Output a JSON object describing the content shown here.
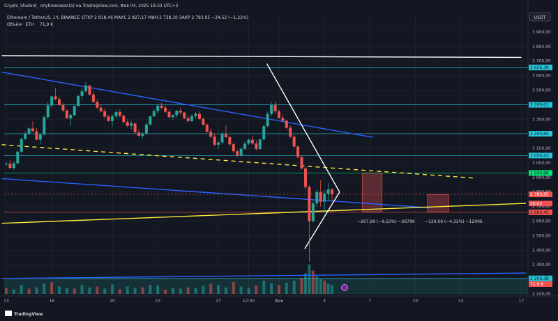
{
  "header": {
    "publisher": "Crypto_Student_ опубликовал(а) на TradingView.com, Фев 04, 2025 18:33 UTC+3",
    "symbol_line": "Ethereum / TetherUS, 1Ч, BINANCE",
    "ohlc": "ОТКР 2 818,46  МАКС 2 827,17  МИН 2 738,10  ЗАКР 2 783,95  −34,52 (−1,22%)",
    "volume_label": "Объём · ETH",
    "volume_value": "71,9 K"
  },
  "currency_button": "USDT",
  "branding": "TradingView",
  "colors": {
    "background": "#131722",
    "up": "#26a69a",
    "down": "#ef5350",
    "cyan_levels": "#26c6da",
    "blue_channel": "#2962ff",
    "yellow_line": "#ffeb3b",
    "white_line": "#ffffff",
    "green_level": "#00e676"
  },
  "chart_data": {
    "type": "candlestick",
    "symbol": "ETHUSDT",
    "interval": "1H",
    "exchange": "BINANCE",
    "y_axis": {
      "range": [
        2100,
        4000
      ],
      "ticks": [
        2100,
        2200,
        2300,
        2400,
        2500,
        2600,
        2700,
        2800,
        2900,
        3000,
        3100,
        3200,
        3300,
        3400,
        3500,
        3600,
        3700,
        3800,
        3900
      ],
      "tick_labels": [
        "2 100,00",
        "2 200,00",
        "2 300,00",
        "2 400,00",
        "2 500,00",
        "2 600,00",
        "2 700,00",
        "2 800,00",
        "2 900,00",
        "3 000,00",
        "3 100,00",
        "3 200,00",
        "3 300,00",
        "3 400,00",
        "3 500,00",
        "3 600,00",
        "3 700,00",
        "3 800,00",
        "3 900,00"
      ]
    },
    "x_axis": {
      "tick_labels": [
        "13",
        "16",
        "20",
        "23",
        "27",
        "12:00",
        "Фев",
        "4",
        "7",
        "10",
        "13",
        "17"
      ],
      "tick_positions": [
        0,
        3,
        7,
        10,
        14,
        16,
        18,
        21,
        24,
        27,
        30,
        34
      ],
      "range": [
        0,
        34.3
      ]
    },
    "horizontal_levels": [
      {
        "value": 3656.39,
        "label": "3 656,39",
        "color": "#26c6da"
      },
      {
        "value": 3399.01,
        "label": "3 399,01",
        "color": "#26c6da"
      },
      {
        "value": 3200.65,
        "label": "3 200,65",
        "color": "#26c6da"
      },
      {
        "value": 3050.43,
        "label": "3 050,43",
        "color": "#26c6da"
      },
      {
        "value": 2930.86,
        "label": "2 930,86",
        "color": "#00e676"
      },
      {
        "value": 2660.45,
        "label": "2 660,45",
        "color": "#ef5350"
      },
      {
        "value": 2206.38,
        "label": "2 206,38",
        "color": "#26c6da"
      }
    ],
    "price_labels": [
      {
        "value": 2783.95,
        "label": "2 783,95",
        "color": "#ef5350"
      },
      {
        "value": 2740,
        "label": "26:02",
        "color": "#ef5350"
      }
    ],
    "volume_scale_label": "71,9 K",
    "trendlines": [
      {
        "from": [
          -0.3,
          3737
        ],
        "to": [
          34,
          3725
        ],
        "color": "#ffffff",
        "style": "solid"
      },
      {
        "from": [
          -0.3,
          3624
        ],
        "to": [
          24.2,
          3176
        ],
        "color": "#2962ff",
        "style": "solid"
      },
      {
        "from": [
          -0.3,
          2892
        ],
        "to": [
          28,
          2692
        ],
        "color": "#2962ff",
        "style": "solid"
      },
      {
        "from": [
          -0.3,
          2206
        ],
        "to": [
          34.3,
          2243
        ],
        "color": "#2962ff",
        "style": "solid"
      },
      {
        "from": [
          -0.3,
          2585
        ],
        "to": [
          34.3,
          2722
        ],
        "color": "#ffeb3b",
        "style": "solid"
      },
      {
        "from": [
          -0.3,
          3125
        ],
        "to": [
          31,
          2895
        ],
        "color": "#ffeb3b",
        "style": "dashed"
      },
      {
        "from": [
          17.2,
          3682
        ],
        "to": [
          22.0,
          2800
        ],
        "color": "#ffffff",
        "style": "solid"
      },
      {
        "from": [
          19.7,
          2410
        ],
        "to": [
          22.0,
          2800
        ],
        "color": "#ffffff",
        "style": "solid"
      }
    ],
    "measure_boxes": [
      {
        "x": [
          23.5,
          24.8
        ],
        "y": [
          2663,
          2931
        ],
        "label": "−267,99 (−9,15%) −26799"
      },
      {
        "x": [
          27.8,
          29.2
        ],
        "y": [
          2663,
          2783
        ],
        "label": "−120,06 (−4,32%) −12006"
      }
    ],
    "candles": [
      [
        0.0,
        2992,
        3008,
        2978,
        2995
      ],
      [
        0.25,
        2995,
        3019,
        2959,
        2965
      ],
      [
        0.5,
        2965,
        3012,
        2953,
        2997
      ],
      [
        0.75,
        2997,
        3087,
        2990,
        3077
      ],
      [
        1.0,
        3077,
        3174,
        3065,
        3164
      ],
      [
        1.25,
        3164,
        3218,
        3158,
        3199
      ],
      [
        1.5,
        3199,
        3246,
        3193,
        3237
      ],
      [
        1.75,
        3237,
        3287,
        3215,
        3218
      ],
      [
        2.0,
        3218,
        3239,
        3157,
        3160
      ],
      [
        2.25,
        3160,
        3200,
        3127,
        3195
      ],
      [
        2.5,
        3195,
        3325,
        3190,
        3314
      ],
      [
        2.75,
        3314,
        3418,
        3305,
        3395
      ],
      [
        3.0,
        3395,
        3464,
        3380,
        3457
      ],
      [
        3.25,
        3457,
        3515,
        3430,
        3438
      ],
      [
        3.5,
        3438,
        3455,
        3393,
        3397
      ],
      [
        3.75,
        3397,
        3414,
        3350,
        3360
      ],
      [
        4.0,
        3360,
        3368,
        3302,
        3306
      ],
      [
        4.25,
        3306,
        3340,
        3255,
        3329
      ],
      [
        4.5,
        3329,
        3395,
        3319,
        3391
      ],
      [
        4.75,
        3391,
        3470,
        3385,
        3460
      ],
      [
        5.0,
        3460,
        3512,
        3435,
        3492
      ],
      [
        5.25,
        3492,
        3560,
        3484,
        3532
      ],
      [
        5.5,
        3532,
        3535,
        3461,
        3470
      ],
      [
        5.75,
        3470,
        3491,
        3412,
        3420
      ],
      [
        6.0,
        3420,
        3440,
        3372,
        3379
      ],
      [
        6.25,
        3379,
        3400,
        3347,
        3355
      ],
      [
        6.5,
        3355,
        3373,
        3305,
        3318
      ],
      [
        6.75,
        3318,
        3330,
        3283,
        3288
      ],
      [
        7.0,
        3288,
        3332,
        3248,
        3322
      ],
      [
        7.25,
        3322,
        3364,
        3305,
        3350
      ],
      [
        7.5,
        3350,
        3368,
        3315,
        3324
      ],
      [
        7.75,
        3324,
        3331,
        3272,
        3281
      ],
      [
        8.0,
        3281,
        3300,
        3245,
        3255
      ],
      [
        8.25,
        3255,
        3290,
        3230,
        3271
      ],
      [
        8.5,
        3271,
        3276,
        3199,
        3210
      ],
      [
        8.75,
        3210,
        3232,
        3180,
        3186
      ],
      [
        9.0,
        3186,
        3210,
        3170,
        3201
      ],
      [
        9.25,
        3201,
        3278,
        3196,
        3264
      ],
      [
        9.5,
        3264,
        3326,
        3257,
        3320
      ],
      [
        9.75,
        3320,
        3370,
        3314,
        3357
      ],
      [
        10.0,
        3357,
        3408,
        3339,
        3393
      ],
      [
        10.25,
        3393,
        3415,
        3369,
        3379
      ],
      [
        10.5,
        3379,
        3400,
        3343,
        3351
      ],
      [
        10.75,
        3351,
        3364,
        3306,
        3314
      ],
      [
        11.0,
        3314,
        3336,
        3295,
        3328
      ],
      [
        11.25,
        3328,
        3364,
        3313,
        3359
      ],
      [
        11.5,
        3359,
        3380,
        3332,
        3346
      ],
      [
        11.75,
        3346,
        3350,
        3301,
        3308
      ],
      [
        12.0,
        3308,
        3325,
        3275,
        3287
      ],
      [
        12.25,
        3287,
        3334,
        3280,
        3321
      ],
      [
        12.5,
        3321,
        3351,
        3304,
        3338
      ],
      [
        12.75,
        3338,
        3354,
        3296,
        3302
      ],
      [
        13.0,
        3302,
        3315,
        3255,
        3262
      ],
      [
        13.25,
        3262,
        3272,
        3207,
        3215
      ],
      [
        13.5,
        3215,
        3237,
        3171,
        3180
      ],
      [
        13.75,
        3180,
        3201,
        3116,
        3125
      ],
      [
        14.0,
        3125,
        3150,
        3096,
        3141
      ],
      [
        14.25,
        3141,
        3213,
        3130,
        3198
      ],
      [
        14.5,
        3198,
        3259,
        3172,
        3177
      ],
      [
        14.75,
        3177,
        3187,
        3115,
        3128
      ],
      [
        15.0,
        3128,
        3137,
        3068,
        3080
      ],
      [
        15.25,
        3080,
        3090,
        3040,
        3052
      ],
      [
        15.5,
        3052,
        3108,
        3045,
        3096
      ],
      [
        15.75,
        3096,
        3147,
        3088,
        3133
      ],
      [
        16.0,
        3133,
        3171,
        3125,
        3159
      ],
      [
        16.25,
        3159,
        3186,
        3125,
        3134
      ],
      [
        16.5,
        3134,
        3155,
        3086,
        3095
      ],
      [
        16.75,
        3095,
        3170,
        3090,
        3161
      ],
      [
        17.0,
        3161,
        3263,
        3155,
        3253
      ],
      [
        17.25,
        3253,
        3352,
        3244,
        3336
      ],
      [
        17.5,
        3336,
        3418,
        3322,
        3397
      ],
      [
        17.75,
        3397,
        3425,
        3344,
        3355
      ],
      [
        18.0,
        3355,
        3370,
        3305,
        3310
      ],
      [
        18.25,
        3310,
        3332,
        3282,
        3290
      ],
      [
        18.5,
        3290,
        3296,
        3230,
        3241
      ],
      [
        18.75,
        3241,
        3258,
        3172,
        3180
      ],
      [
        19.0,
        3180,
        3195,
        3105,
        3112
      ],
      [
        19.25,
        3112,
        3120,
        3031,
        3040
      ],
      [
        19.5,
        3040,
        3048,
        2955,
        2962
      ],
      [
        19.75,
        2962,
        2974,
        2818,
        2835
      ],
      [
        20.0,
        2835,
        2847,
        2321,
        2600
      ],
      [
        20.25,
        2600,
        2740,
        2590,
        2722
      ],
      [
        20.5,
        2722,
        2818,
        2700,
        2800
      ],
      [
        20.75,
        2800,
        2880,
        2700,
        2733
      ],
      [
        21.0,
        2733,
        2812,
        2654,
        2788
      ],
      [
        21.25,
        2788,
        2860,
        2739,
        2818
      ],
      [
        21.5,
        2818,
        2827,
        2738,
        2784
      ]
    ],
    "volumes": [
      [
        0.0,
        0.2
      ],
      [
        0.5,
        0.15
      ],
      [
        1.0,
        0.3
      ],
      [
        1.5,
        0.18
      ],
      [
        2.0,
        0.22
      ],
      [
        2.5,
        0.35
      ],
      [
        3.0,
        0.4
      ],
      [
        3.5,
        0.25
      ],
      [
        4.0,
        0.2
      ],
      [
        4.5,
        0.18
      ],
      [
        5.0,
        0.3
      ],
      [
        5.5,
        0.22
      ],
      [
        6.0,
        0.25
      ],
      [
        6.5,
        0.18
      ],
      [
        7.0,
        0.32
      ],
      [
        7.5,
        0.16
      ],
      [
        8.0,
        0.25
      ],
      [
        8.5,
        0.2
      ],
      [
        9.0,
        0.22
      ],
      [
        9.5,
        0.3
      ],
      [
        10.0,
        0.28
      ],
      [
        10.5,
        0.15
      ],
      [
        11.0,
        0.2
      ],
      [
        11.5,
        0.18
      ],
      [
        12.0,
        0.22
      ],
      [
        12.5,
        0.2
      ],
      [
        13.0,
        0.28
      ],
      [
        13.5,
        0.35
      ],
      [
        14.0,
        0.3
      ],
      [
        14.5,
        0.22
      ],
      [
        15.0,
        0.4
      ],
      [
        15.5,
        0.25
      ],
      [
        16.0,
        0.2
      ],
      [
        16.5,
        0.28
      ],
      [
        17.0,
        0.45
      ],
      [
        17.5,
        0.35
      ],
      [
        18.0,
        0.3
      ],
      [
        18.5,
        0.38
      ],
      [
        19.0,
        0.45
      ],
      [
        19.5,
        0.55
      ],
      [
        19.75,
        0.7
      ],
      [
        20.0,
        1.0
      ],
      [
        20.25,
        0.8
      ],
      [
        20.5,
        0.6
      ],
      [
        20.75,
        0.5
      ],
      [
        21.0,
        0.45
      ],
      [
        21.25,
        0.35
      ],
      [
        21.5,
        0.3
      ]
    ]
  }
}
